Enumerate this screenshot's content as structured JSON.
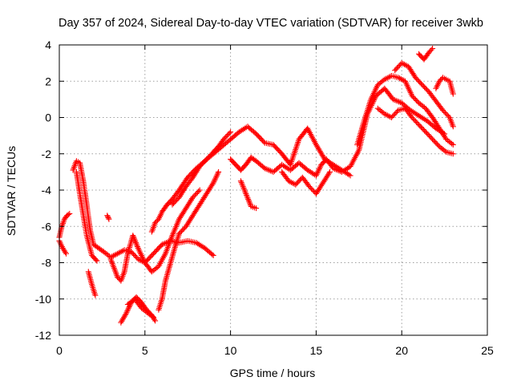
{
  "chart_data": {
    "type": "scatter",
    "title": "Day 357 of 2024, Sidereal Day-to-day VTEC variation (SDTVAR) for receiver 3wkb",
    "xlabel": "GPS time / hours",
    "ylabel": "SDTVAR / TECUs",
    "xlim": [
      0,
      25
    ],
    "ylim": [
      -12,
      4
    ],
    "xticks": [
      0,
      5,
      10,
      15,
      20,
      25
    ],
    "yticks": [
      -12,
      -10,
      -8,
      -6,
      -4,
      -2,
      0,
      2,
      4
    ],
    "xtick_labels": [
      "0",
      "5",
      "10",
      "15",
      "20",
      "25"
    ],
    "ytick_labels": [
      "-12",
      "-10",
      "-8",
      "-6",
      "-4",
      "-2",
      "0",
      "2",
      "4"
    ],
    "grid": true,
    "legend": "none",
    "marker": "plus",
    "color": "#ff0000",
    "series": [
      {
        "x": [
          0.0,
          0.15,
          0.3,
          0.45,
          0.6
        ],
        "y": [
          -6.6,
          -6.0,
          -5.6,
          -5.4,
          -5.3
        ]
      },
      {
        "x": [
          0.0,
          0.2,
          0.4
        ],
        "y": [
          -6.8,
          -7.2,
          -7.5
        ]
      },
      {
        "x": [
          0.8,
          1.0,
          1.2,
          1.4,
          1.6,
          1.8,
          2.0,
          2.3,
          2.6,
          3.0,
          3.4,
          3.8,
          4.2,
          4.6,
          5.0,
          5.5,
          6.0,
          6.5,
          7.0,
          7.5,
          8.0,
          8.5,
          9.0
        ],
        "y": [
          -2.9,
          -2.4,
          -2.5,
          -3.5,
          -4.8,
          -6.2,
          -7.0,
          -7.2,
          -7.4,
          -7.7,
          -7.5,
          -7.3,
          -7.4,
          -7.8,
          -8.0,
          -7.5,
          -7.0,
          -6.8,
          -6.9,
          -6.8,
          -6.9,
          -7.2,
          -7.6
        ]
      },
      {
        "x": [
          1.0,
          1.3,
          1.6,
          1.9,
          2.2
        ],
        "y": [
          -3.0,
          -4.8,
          -6.5,
          -7.6,
          -7.9
        ]
      },
      {
        "x": [
          1.7,
          1.9,
          2.1
        ],
        "y": [
          -8.5,
          -9.2,
          -9.8
        ]
      },
      {
        "x": [
          2.8,
          2.9
        ],
        "y": [
          -5.4,
          -5.6
        ]
      },
      {
        "x": [
          3.0,
          3.2,
          3.4,
          3.6,
          3.8,
          4.0,
          4.3,
          4.6,
          5.0,
          5.4,
          5.8,
          6.2,
          6.6,
          7.0,
          7.4,
          7.8,
          8.2
        ],
        "y": [
          -7.8,
          -8.3,
          -8.8,
          -9.0,
          -8.5,
          -7.5,
          -6.5,
          -7.2,
          -8.0,
          -8.5,
          -8.2,
          -7.5,
          -6.5,
          -5.6,
          -5.0,
          -4.4,
          -4.0
        ]
      },
      {
        "x": [
          3.6,
          3.9,
          4.2,
          4.5,
          4.8,
          5.1,
          5.4,
          5.6
        ],
        "y": [
          -11.3,
          -10.8,
          -10.2,
          -9.9,
          -10.2,
          -10.6,
          -10.9,
          -11.2
        ]
      },
      {
        "x": [
          4.0,
          4.4,
          4.8,
          5.2,
          5.5
        ],
        "y": [
          -10.3,
          -10.0,
          -10.5,
          -10.8,
          -11.0
        ]
      },
      {
        "x": [
          5.4,
          5.6,
          5.8,
          6.0,
          6.3,
          6.6,
          7.0,
          7.5,
          8.0,
          8.5,
          9.0,
          9.5,
          10.0,
          10.5,
          11.0,
          11.5,
          12.0,
          12.5,
          13.0,
          13.5,
          14.0,
          14.5,
          15.0,
          15.5,
          16.0,
          16.5,
          17.0
        ],
        "y": [
          -6.3,
          -5.8,
          -5.6,
          -5.2,
          -4.8,
          -4.5,
          -4.0,
          -3.3,
          -2.8,
          -2.4,
          -2.0,
          -1.6,
          -1.2,
          -0.8,
          -0.5,
          -0.9,
          -1.4,
          -1.5,
          -2.0,
          -2.6,
          -1.2,
          -0.6,
          -1.5,
          -2.3,
          -2.6,
          -2.9,
          -3.2
        ]
      },
      {
        "x": [
          5.8,
          6.0,
          6.2,
          6.5,
          6.8,
          7.0,
          7.4,
          7.8,
          8.2,
          8.6,
          9.0,
          9.3
        ],
        "y": [
          -10.6,
          -10.0,
          -9.0,
          -8.0,
          -7.0,
          -6.4,
          -6.0,
          -5.4,
          -4.8,
          -4.2,
          -3.6,
          -3.0
        ]
      },
      {
        "x": [
          6.6,
          7.0,
          7.4,
          7.8,
          8.2,
          8.6,
          9.0,
          9.3,
          9.6,
          10.0
        ],
        "y": [
          -4.8,
          -4.4,
          -3.8,
          -3.3,
          -2.7,
          -2.3,
          -1.9,
          -1.6,
          -1.2,
          -0.8
        ]
      },
      {
        "x": [
          10.0,
          10.3,
          10.6,
          10.9,
          11.2,
          11.5,
          12.0,
          12.5,
          13.0,
          13.5,
          14.0,
          14.5,
          15.0,
          15.3,
          15.6,
          16.0,
          16.5,
          17.0,
          17.5,
          18.0,
          18.5,
          19.0,
          19.5,
          20.0,
          20.5,
          21.0,
          21.5,
          22.0,
          22.5
        ],
        "y": [
          -2.3,
          -2.6,
          -2.9,
          -2.6,
          -2.2,
          -2.4,
          -2.8,
          -3.0,
          -2.6,
          -2.9,
          -2.5,
          -2.9,
          -3.2,
          -2.6,
          -2.3,
          -2.8,
          -3.0,
          -2.7,
          -1.8,
          0.2,
          1.2,
          1.6,
          1.0,
          0.8,
          0.4,
          0.1,
          -0.2,
          -0.6,
          -0.9
        ]
      },
      {
        "x": [
          10.6,
          10.9,
          11.2,
          11.5
        ],
        "y": [
          -3.5,
          -4.2,
          -4.9,
          -5.0
        ]
      },
      {
        "x": [
          13.0,
          13.4,
          13.8,
          14.2,
          14.6,
          15.0,
          15.4,
          15.8
        ],
        "y": [
          -3.0,
          -3.5,
          -3.7,
          -3.3,
          -3.8,
          -4.2,
          -3.6,
          -3.0
        ]
      },
      {
        "x": [
          17.4,
          17.8,
          18.2,
          18.6,
          19.0,
          19.4,
          19.8,
          20.2,
          20.6,
          21.0,
          21.4,
          21.8,
          22.2,
          22.6,
          23.0
        ],
        "y": [
          -1.5,
          -0.2,
          1.0,
          1.8,
          2.1,
          2.3,
          2.2,
          2.0,
          1.2,
          0.8,
          0.5,
          0.0,
          -0.6,
          -1.2,
          -1.5
        ]
      },
      {
        "x": [
          18.6,
          19.0,
          19.4,
          19.8,
          20.2,
          20.6,
          21.0,
          21.4,
          21.8,
          22.2,
          22.6,
          23.0
        ],
        "y": [
          0.5,
          0.2,
          0.0,
          0.4,
          0.5,
          0.0,
          -0.4,
          -0.8,
          -1.2,
          -1.6,
          -1.9,
          -2.0
        ]
      },
      {
        "x": [
          19.6,
          20.0,
          20.4,
          20.8,
          21.2,
          21.6,
          22.0,
          22.4,
          22.8,
          23.0
        ],
        "y": [
          2.6,
          3.0,
          2.8,
          2.2,
          1.8,
          1.4,
          0.9,
          0.4,
          0.0,
          -0.5
        ]
      },
      {
        "x": [
          21.0,
          21.3,
          21.6,
          21.8
        ],
        "y": [
          3.5,
          3.2,
          3.6,
          3.8
        ]
      },
      {
        "x": [
          22.0,
          22.2,
          22.4,
          22.6,
          22.8,
          23.0
        ],
        "y": [
          1.6,
          2.0,
          2.2,
          2.1,
          2.0,
          1.3
        ]
      }
    ]
  }
}
